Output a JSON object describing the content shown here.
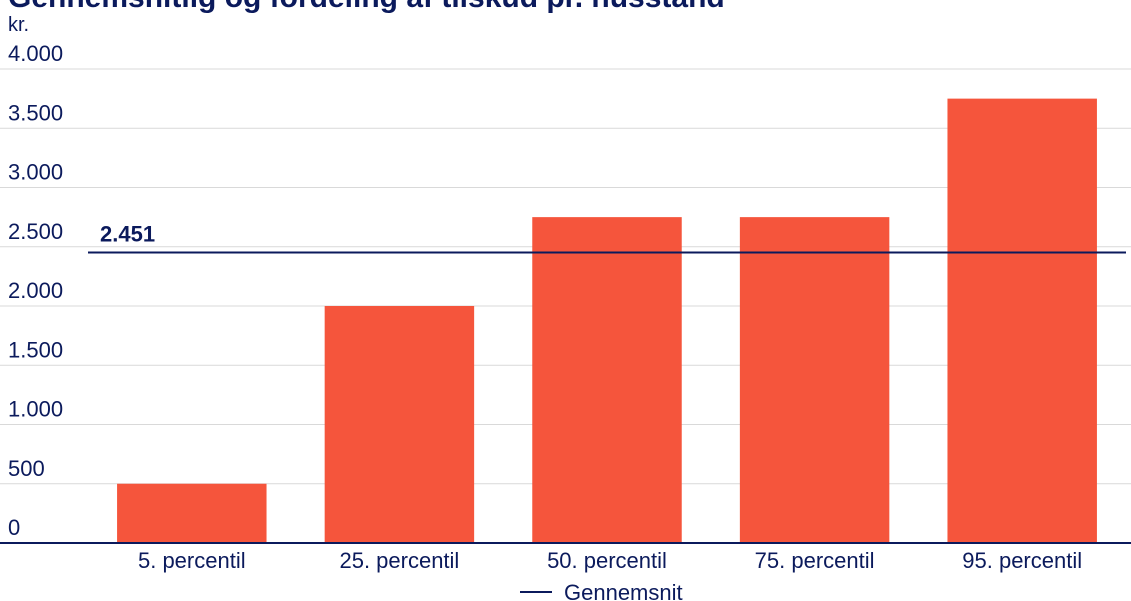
{
  "chart_data": {
    "type": "bar",
    "title": "Gennemsnitlig og fordeling af tilskud pr. husstand",
    "ylabel": "kr.",
    "categories": [
      "5. percentil",
      "25. percentil",
      "50. percentil",
      "75. percentil",
      "95. percentil"
    ],
    "values": [
      500,
      2000,
      2750,
      2750,
      3750
    ],
    "ylim": [
      0,
      4000
    ],
    "yticks": [
      0,
      500,
      1000,
      1500,
      2000,
      2500,
      3000,
      3500,
      4000
    ],
    "ytick_labels": [
      "0",
      "500",
      "1.000",
      "1.500",
      "2.000",
      "2.500",
      "3.000",
      "3.500",
      "4.000"
    ],
    "average": {
      "value": 2451,
      "label": "2.451",
      "legend": "Gennemsnit"
    },
    "grid": true,
    "legend_position": "bottom-center",
    "colors": {
      "bar": "#f5553c",
      "average_line": "#0b1a5c",
      "text": "#0b1a5c",
      "grid": "#d9d9d9"
    }
  }
}
